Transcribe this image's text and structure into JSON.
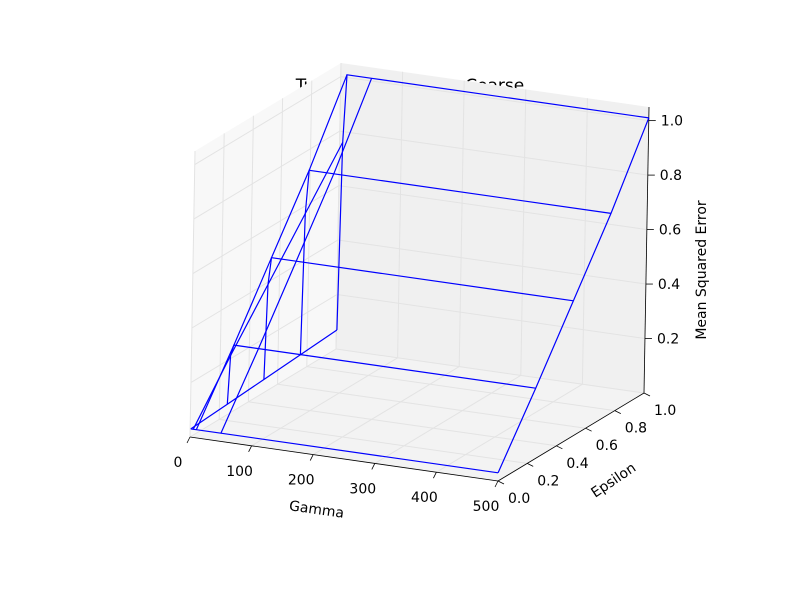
{
  "chart_data": {
    "type": "wireframe",
    "title": "Tuning Parameters: Coarse",
    "xlabel": "Gamma",
    "ylabel": "Epsilon",
    "zlabel": "Mean Squared Error",
    "xlim": [
      0,
      500
    ],
    "ylim": [
      0,
      1
    ],
    "zlim": [
      0,
      1.05
    ],
    "x_ticks": [
      0,
      100,
      200,
      300,
      400,
      500
    ],
    "y_ticks": [
      0.0,
      0.2,
      0.4,
      0.6,
      0.8,
      1.0
    ],
    "z_ticks": [
      0.2,
      0.4,
      0.6,
      0.8,
      1.0
    ],
    "x_tick_labels": [
      "0",
      "100",
      "200",
      "300",
      "400",
      "500"
    ],
    "y_tick_labels": [
      "0.0",
      "0.2",
      "0.4",
      "0.6",
      "0.8",
      "1.0"
    ],
    "z_tick_labels": [
      "0.2",
      "0.4",
      "0.6",
      "0.8",
      "1.0"
    ],
    "grid": true,
    "line_color": "#0000ff",
    "x": [
      1,
      5,
      10,
      50,
      500
    ],
    "y": [
      0,
      0.25,
      0.5,
      0.75,
      1.0
    ],
    "z_surface": [
      [
        0.03,
        0.04,
        0.05,
        0.06,
        0.07
      ],
      [
        0.03,
        0.22,
        0.4,
        0.58,
        0.76
      ],
      [
        0.03,
        0.26,
        0.5,
        0.74,
        1.01
      ],
      [
        0.03,
        0.26,
        0.5,
        0.74,
        1.01
      ],
      [
        0.03,
        0.26,
        0.5,
        0.74,
        1.01
      ]
    ]
  }
}
